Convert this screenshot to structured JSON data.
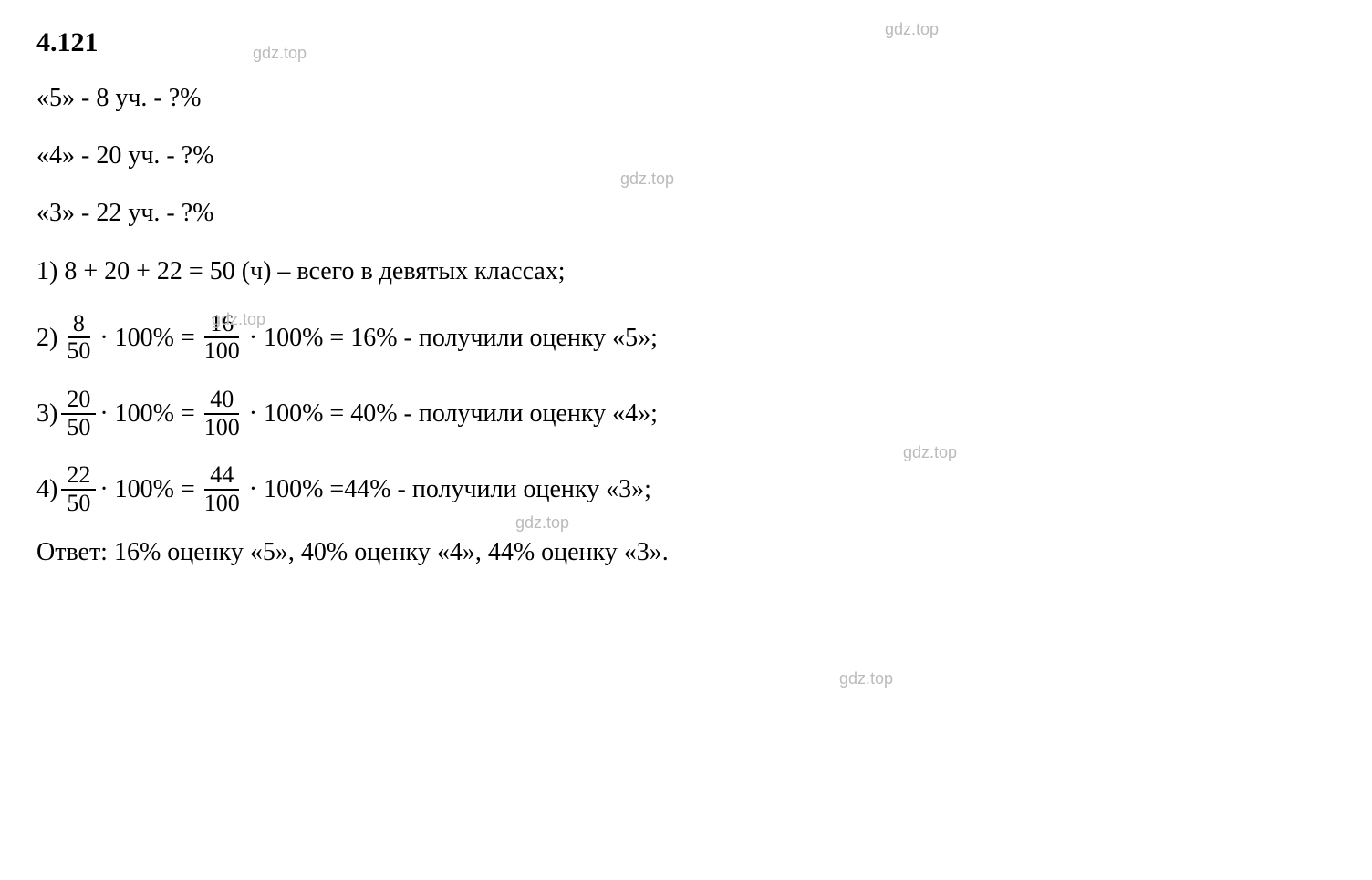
{
  "exercise_number": "4.121",
  "text_color": "#000000",
  "background_color": "#ffffff",
  "watermark_text": "gdz.top",
  "watermark_color": "#bbbbbb",
  "font_family": "Times New Roman",
  "font_size_main": 28,
  "given": [
    "«5» - 8 уч. - ?%",
    "«4» - 20 уч. - ?%",
    "«3» - 22 уч. - ?%"
  ],
  "step1": "1) 8 + 20 + 22 = 50 (ч) – всего в девятых классах;",
  "steps_frac": [
    {
      "prefix": "2) ",
      "frac1_num": "8",
      "frac1_den": "50",
      "mid1": " · 100% = ",
      "frac2_num": "16",
      "frac2_den": "100",
      "mid2": " · 100% = 16% - получили оценку «5»;"
    },
    {
      "prefix": "3) ",
      "frac1_num": "20",
      "frac1_den": "50",
      "mid1": " · 100% = ",
      "frac2_num": "40",
      "frac2_den": "100",
      "mid2": " · 100% = 40% - получили оценку «4»;"
    },
    {
      "prefix": "4) ",
      "frac1_num": "22",
      "frac1_den": "50",
      "mid1": " · 100% = ",
      "frac2_num": "44",
      "frac2_den": "100",
      "mid2": " · 100% =44% - получили оценку «3»;"
    }
  ],
  "answer": "Ответ: 16% оценку «5», 40% оценку «4», 44% оценку «3»."
}
